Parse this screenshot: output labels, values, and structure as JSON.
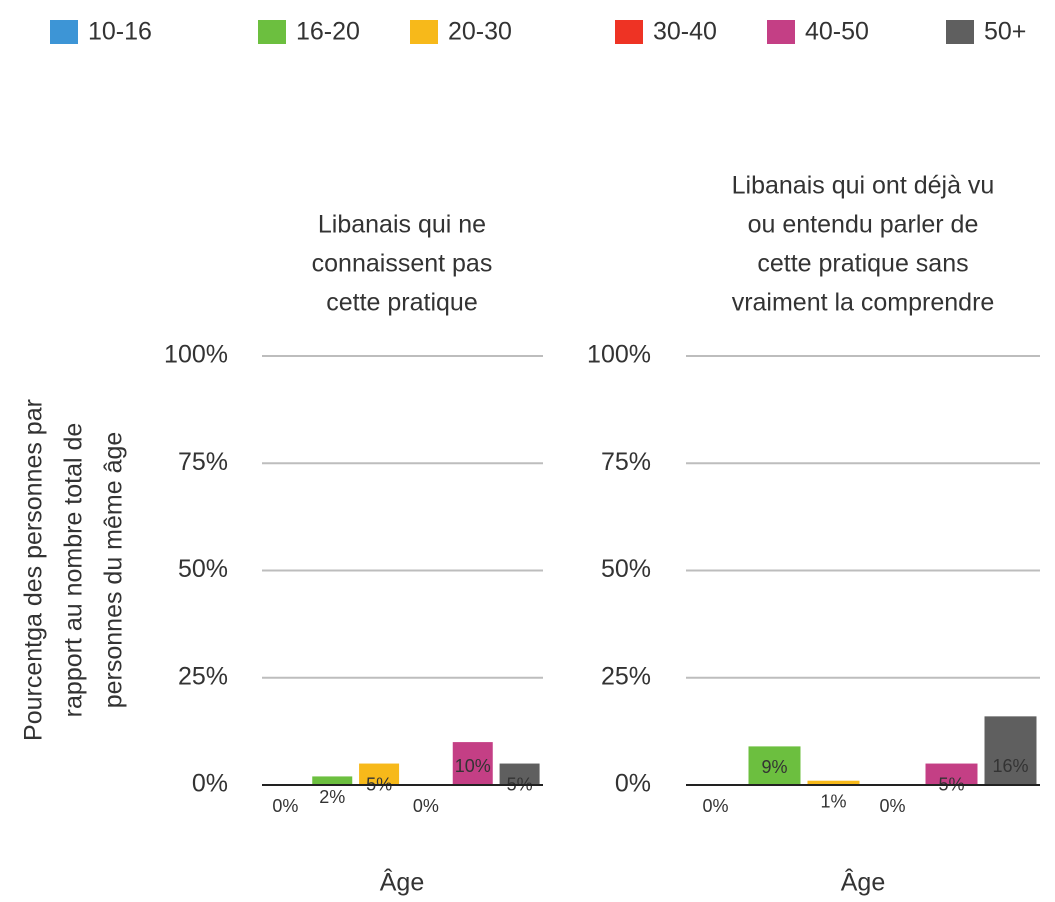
{
  "legend": [
    {
      "name": "10-16",
      "color": "#3d95d6"
    },
    {
      "name": "16-20",
      "color": "#6cbf3f"
    },
    {
      "name": "20-30",
      "color": "#f7b91a"
    },
    {
      "name": "30-40",
      "color": "#ee3324"
    },
    {
      "name": "40-50",
      "color": "#c43f85"
    },
    {
      "name": "50+",
      "color": "#5f5f5f"
    }
  ],
  "chart_data": [
    {
      "type": "bar",
      "title": [
        "Libanais qui ne",
        "connaissent pas",
        "cette pratique"
      ],
      "ylabel": [
        "Pourcentga des personnes par",
        "rapport au nombre total de",
        "personnes du même âge"
      ],
      "xlabel": "Âge",
      "values": [
        0,
        2,
        5,
        0,
        10,
        5
      ],
      "value_labels": [
        "0%",
        "2%",
        "5%",
        "0%",
        "10%",
        "5%"
      ],
      "ylim": [
        0,
        100
      ],
      "yticks": [
        {
          "value": 0,
          "label": "0%"
        },
        {
          "value": 25,
          "label": "25%"
        },
        {
          "value": 50,
          "label": "50%"
        },
        {
          "value": 75,
          "label": "75%"
        },
        {
          "value": 100,
          "label": "100%"
        }
      ],
      "grid": true
    },
    {
      "type": "bar",
      "title": [
        "Libanais qui ont déjà vu",
        "ou entendu parler de",
        "cette pratique sans",
        "vraiment la comprendre"
      ],
      "xlabel": "Âge",
      "values": [
        0,
        9,
        1,
        0,
        5,
        16
      ],
      "value_labels": [
        "0%",
        "9%",
        "1%",
        "0%",
        "5%",
        "16%"
      ],
      "ylim": [
        0,
        100
      ],
      "yticks": [
        {
          "value": 0,
          "label": "0%"
        },
        {
          "value": 25,
          "label": "25%"
        },
        {
          "value": 50,
          "label": "50%"
        },
        {
          "value": 75,
          "label": "75%"
        },
        {
          "value": 100,
          "label": "100%"
        }
      ],
      "grid": true
    }
  ]
}
